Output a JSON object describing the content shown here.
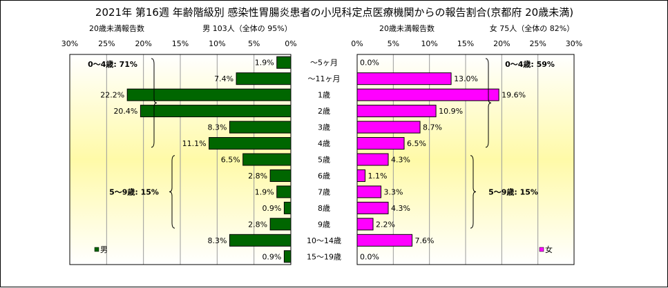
{
  "chart_data": {
    "type": "bar",
    "title": "2021年 第16週 年齢階級別 感染性胃腸炎患者の小児科定点医療機関からの報告割合(京都府 20歳未満)",
    "categories": [
      "～5ヶ月",
      "～11ヶ月",
      "1歳",
      "2歳",
      "3歳",
      "4歳",
      "5歳",
      "6歳",
      "7歳",
      "8歳",
      "9歳",
      "10～14歳",
      "15～19歳"
    ],
    "xlim": [
      0,
      30
    ],
    "xticks": [
      "0%",
      "5%",
      "10%",
      "15%",
      "20%",
      "25%",
      "30%"
    ],
    "series": [
      {
        "name": "男",
        "color": "#006600",
        "axis_label": "20歳未満報告数",
        "header": "男 103人（全体の 95%）",
        "values": [
          1.9,
          7.4,
          22.2,
          20.4,
          8.3,
          11.1,
          6.5,
          2.8,
          1.9,
          0.9,
          2.8,
          8.3,
          0.9
        ],
        "labels": [
          "1.9%",
          "7.4%",
          "22.2%",
          "20.4%",
          "8.3%",
          "11.1%",
          "6.5%",
          "2.8%",
          "1.9%",
          "0.9%",
          "2.8%",
          "8.3%",
          "0.9%"
        ],
        "groups": [
          {
            "label": "0～4歳: 71%",
            "from": 0,
            "to": 5
          },
          {
            "label": "5～9歳: 15%",
            "from": 6,
            "to": 10
          }
        ]
      },
      {
        "name": "女",
        "color": "#ff00ff",
        "axis_label": "20歳未満報告数",
        "header": "女 75人（全体の 82%）",
        "values": [
          0.0,
          13.0,
          19.6,
          10.9,
          8.7,
          6.5,
          4.3,
          1.1,
          3.3,
          4.3,
          2.2,
          7.6,
          0.0
        ],
        "labels": [
          "0.0%",
          "13.0%",
          "19.6%",
          "10.9%",
          "8.7%",
          "6.5%",
          "4.3%",
          "1.1%",
          "3.3%",
          "4.3%",
          "2.2%",
          "7.6%",
          "0.0%"
        ],
        "groups": [
          {
            "label": "0～4歳: 59%",
            "from": 0,
            "to": 5
          },
          {
            "label": "5～9歳: 15%",
            "from": 6,
            "to": 10
          }
        ]
      }
    ],
    "grid": true
  }
}
